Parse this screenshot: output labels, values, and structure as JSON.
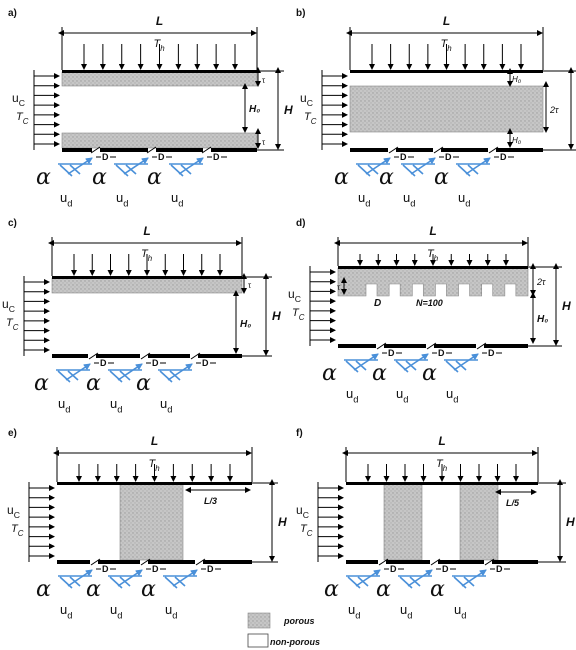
{
  "panels": [
    {
      "id": "a",
      "label": "a)",
      "L": "L",
      "Th": "T",
      "Th_sub": "h",
      "H": "H",
      "H0": "H₀",
      "tau_top": "τ",
      "tau_bot": "τ",
      "uc": "u",
      "uc_sub": "C",
      "Tc": "T",
      "Tc_sub": "C",
      "D": "D",
      "alpha": "α",
      "ud": "u",
      "ud_sub": "d"
    },
    {
      "id": "b",
      "label": "b)",
      "L": "L",
      "Th": "T",
      "Th_sub": "h",
      "H": "H",
      "H0_top": "H₀",
      "two_tau": "2τ",
      "H0_bot": "H₀",
      "uc": "u",
      "uc_sub": "C",
      "Tc": "T",
      "Tc_sub": "C",
      "D": "D",
      "alpha": "α",
      "ud": "u",
      "ud_sub": "d"
    },
    {
      "id": "c",
      "label": "c)",
      "L": "L",
      "Th": "T",
      "Th_sub": "h",
      "H": "H",
      "H0": "H₀",
      "tau": "τ",
      "uc": "u",
      "uc_sub": "C",
      "Tc": "T",
      "Tc_sub": "C",
      "D": "D",
      "alpha": "α",
      "ud": "u",
      "ud_sub": "d"
    },
    {
      "id": "d",
      "label": "d)",
      "L": "L",
      "Th": "T",
      "Th_sub": "h",
      "H": "H",
      "H0": "H₀",
      "two_tau": "2τ",
      "tau": "τ",
      "D_label": "D",
      "N": "N=100",
      "uc": "u",
      "uc_sub": "C",
      "Tc": "T",
      "Tc_sub": "C",
      "D": "D",
      "alpha": "α",
      "ud": "u",
      "ud_sub": "d"
    },
    {
      "id": "e",
      "label": "e)",
      "L": "L",
      "Th": "T",
      "Th_sub": "h",
      "H": "H",
      "frac": "L/3",
      "uc": "u",
      "uc_sub": "C",
      "Tc": "T",
      "Tc_sub": "C",
      "D": "D",
      "alpha": "α",
      "ud": "u",
      "ud_sub": "d"
    },
    {
      "id": "f",
      "label": "f)",
      "L": "L",
      "Th": "T",
      "Th_sub": "h",
      "H": "H",
      "frac": "L/5",
      "uc": "u",
      "uc_sub": "C",
      "Tc": "T",
      "Tc_sub": "C",
      "D": "D",
      "alpha": "α",
      "ud": "u",
      "ud_sub": "d"
    }
  ],
  "legend": {
    "porous": "porous",
    "non_porous": "non-porous"
  },
  "colors": {
    "porous_fill": "#c4c4c4",
    "wall": "#000000",
    "jet": "#4a90d9"
  }
}
